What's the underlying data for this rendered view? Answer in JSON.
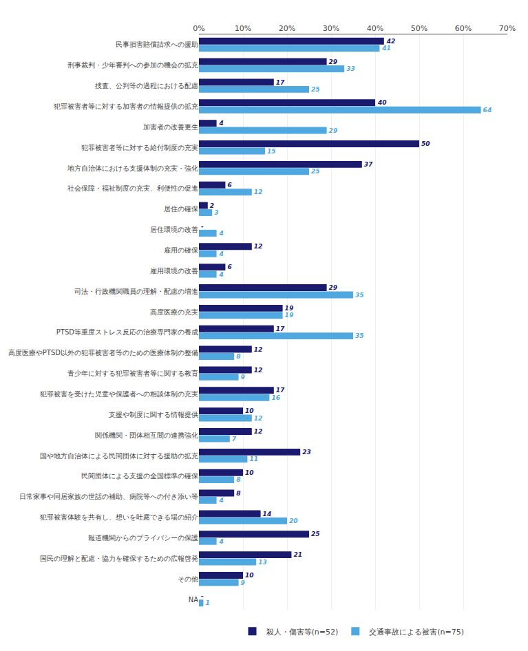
{
  "chart_data": {
    "type": "bar",
    "orientation": "horizontal",
    "categories": [
      "民事損害賠償請求への援助",
      "刑事裁判・少年審判への参加の機会の拡充",
      "捜査、公判等の過程における配慮",
      "犯罪被害者等に対する加害者の情報提供の拡充",
      "加害者の改善更生",
      "犯罪被害者等に対する給付制度の充実",
      "地方自治体における支援体制の充実・強化",
      "社会保障・福祉制度の充実、利便性の促進",
      "居住の確保",
      "居住環境の改善",
      "雇用の確保",
      "雇用環境の改善",
      "司法・行政機関職員の理解・配慮の増進",
      "高度医療の充実",
      "PTSD等重度ストレス反応の治療専門家の養成",
      "高度医療やPTSD以外の犯罪被害者等のための医療体制の整備",
      "青少年に対する犯罪被害者等に関する教育",
      "犯罪被害を受けた児童や保護者への相談体制の充実",
      "支援や制度に関する情報提供",
      "関係機関・団体相互間の連携強化",
      "国や地方自治体による民間団体に対する援助の拡充",
      "民間団体による支援の全国標準の確保",
      "日常家事や同居家族の世話の補助、病院等への付き添い等",
      "犯罪被害体験を共有し、想いを吐露できる場の紹介",
      "報道機関からのプライバシーの保護",
      "国民の理解と配慮・協力を確保するための広報啓発",
      "その他",
      "NA"
    ],
    "series": [
      {
        "name": "殺人・傷害等(n=52)",
        "color": "#1a1a6e",
        "values": [
          42,
          29,
          17,
          40,
          4,
          50,
          37,
          6,
          2,
          0,
          12,
          6,
          29,
          19,
          17,
          12,
          12,
          17,
          10,
          12,
          23,
          10,
          8,
          14,
          25,
          21,
          10,
          0
        ],
        "value_labels": [
          "42",
          "29",
          "17",
          "40",
          "4",
          "50",
          "37",
          "6",
          "2",
          "-",
          "12",
          "6",
          "29",
          "19",
          "17",
          "12",
          "12",
          "17",
          "10",
          "12",
          "23",
          "10",
          "8",
          "14",
          "25",
          "21",
          "10",
          "-"
        ]
      },
      {
        "name": "交通事故による被害(n=75)",
        "color": "#4fa8e0",
        "values": [
          41,
          33,
          25,
          64,
          29,
          15,
          25,
          12,
          3,
          4,
          4,
          4,
          35,
          19,
          35,
          8,
          9,
          16,
          12,
          7,
          11,
          8,
          4,
          20,
          4,
          13,
          9,
          1
        ]
      }
    ],
    "xlim": [
      0,
      70
    ],
    "xticks": [
      {
        "value": 0,
        "label": "0%"
      },
      {
        "value": 10,
        "label": "10%"
      },
      {
        "value": 20,
        "label": "20%"
      },
      {
        "value": 30,
        "label": "30%"
      },
      {
        "value": 40,
        "label": "40%"
      },
      {
        "value": 50,
        "label": "50%"
      },
      {
        "value": 60,
        "label": "60%"
      },
      {
        "value": 70,
        "label": "70%"
      }
    ],
    "grid": true,
    "legend": "bottom",
    "data_labels": true
  }
}
